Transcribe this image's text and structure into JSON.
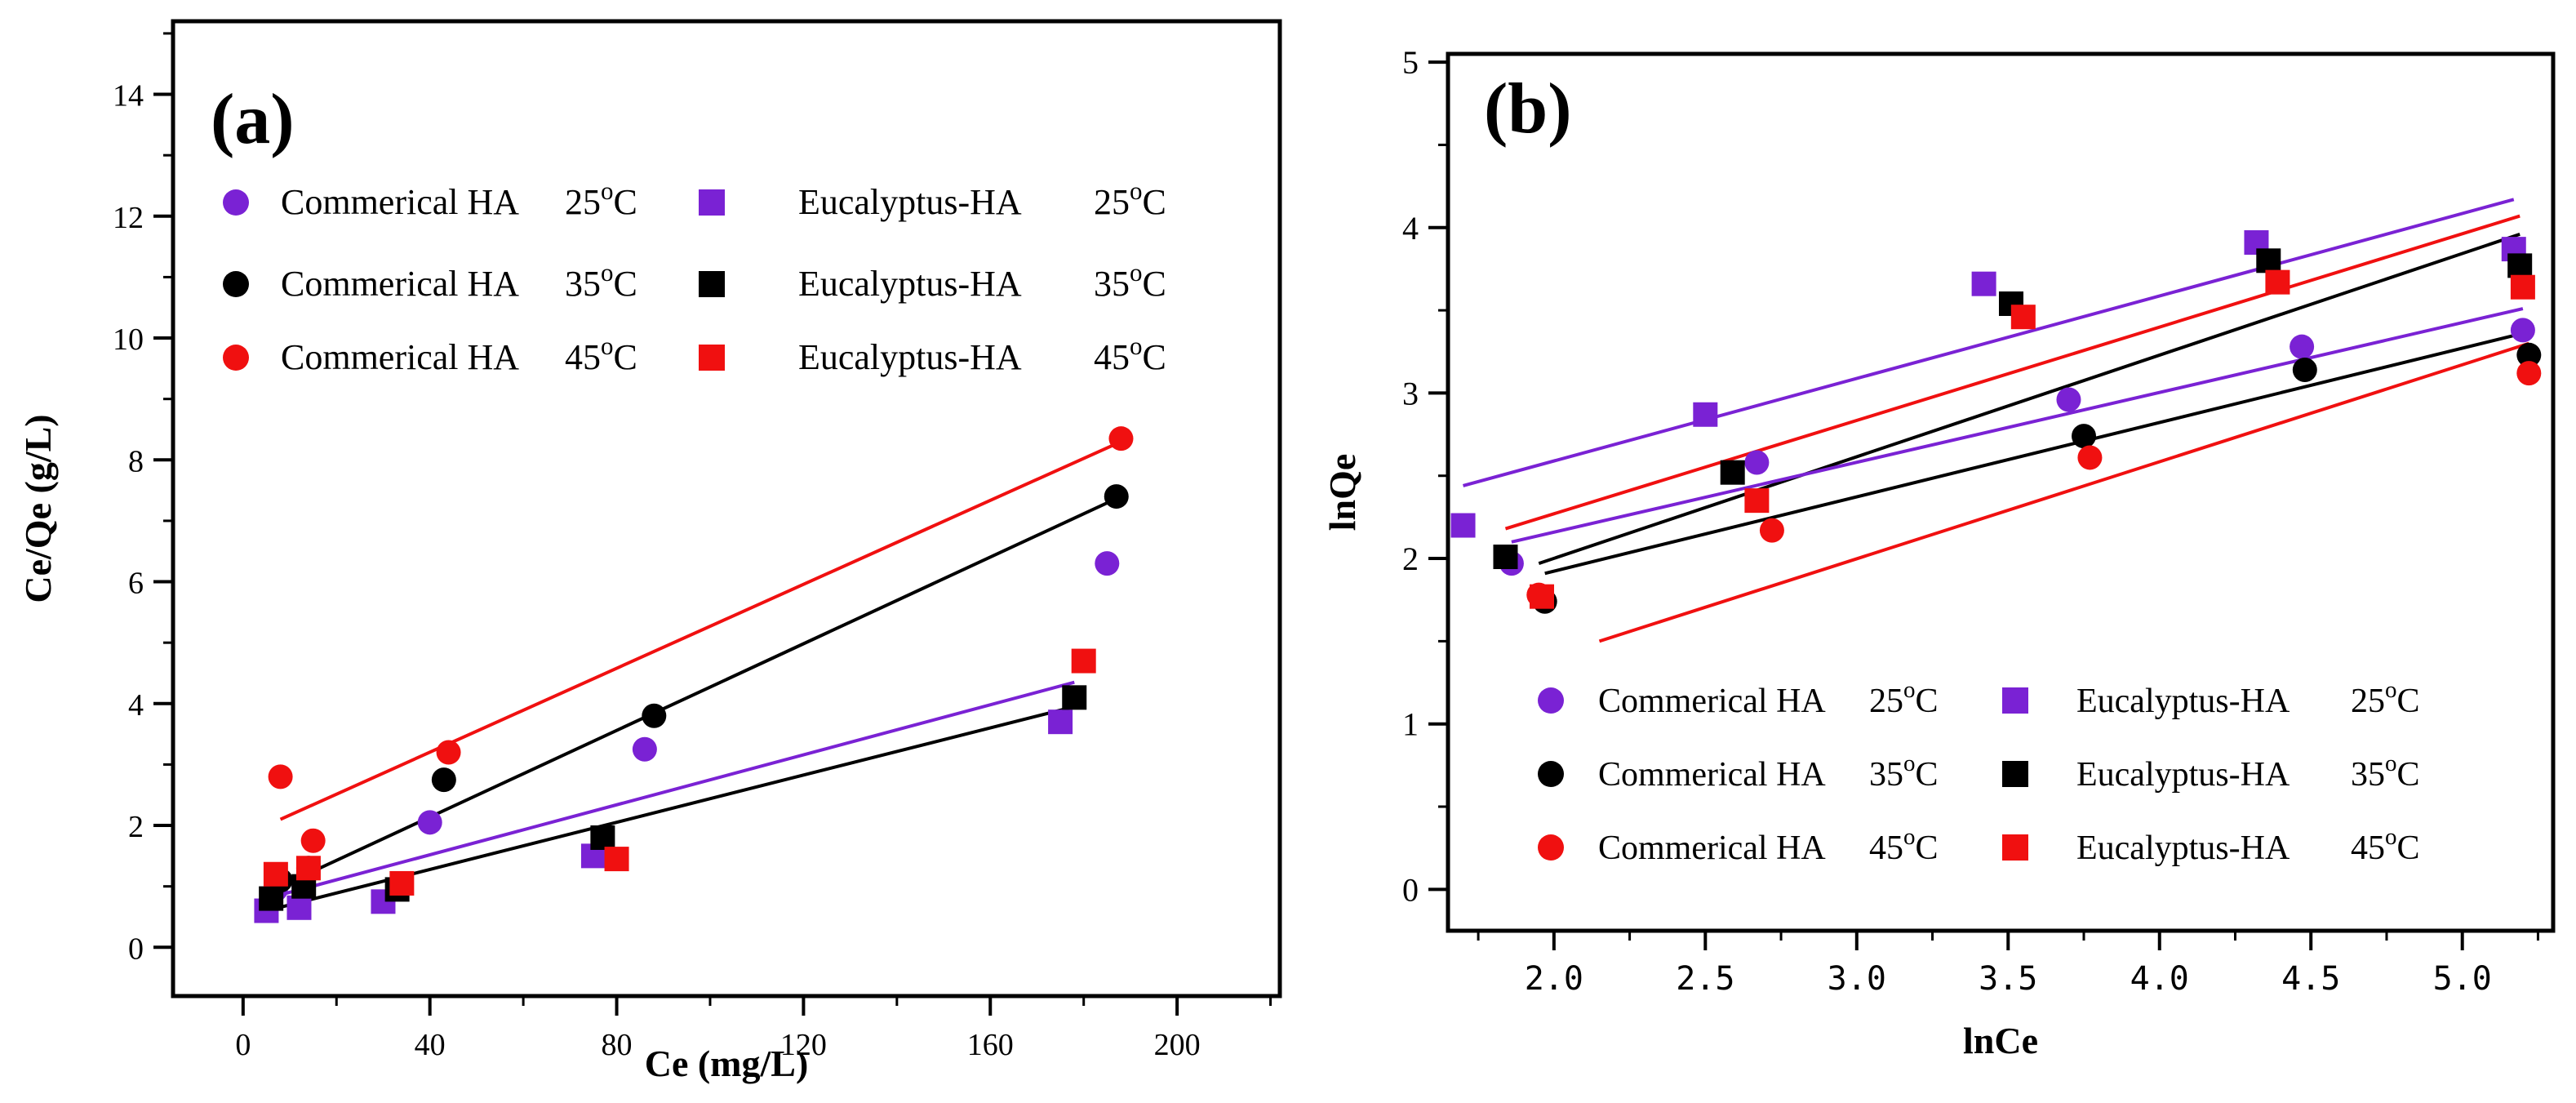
{
  "chart_data": [
    {
      "type": "scatter",
      "panel_label": "(a)",
      "title": "",
      "xlabel": "Ce (mg/L)",
      "ylabel": "Ce/Qe (g/L)",
      "xlim": [
        -15,
        222
      ],
      "ylim": [
        -0.8,
        15.2
      ],
      "xticks": [
        "0",
        "40",
        "80",
        "120",
        "160",
        "200"
      ],
      "yticks": [
        "0",
        "2",
        "4",
        "6",
        "8",
        "10",
        "12",
        "14"
      ],
      "legend_position": "top",
      "series": [
        {
          "name": "Commerical HA",
          "temp": "25",
          "color": "#7a22d4",
          "marker": "circle",
          "x": [
            7,
            13,
            40,
            86,
            185
          ],
          "y": [
            0.95,
            1.0,
            2.05,
            3.25,
            6.3
          ]
        },
        {
          "name": "Commerical HA",
          "temp": "35",
          "color": "#000000",
          "marker": "circle",
          "x": [
            8,
            14,
            43,
            88,
            187
          ],
          "y": [
            1.1,
            1.3,
            2.75,
            3.8,
            7.4
          ]
        },
        {
          "name": "Commerical HA",
          "temp": "45",
          "color": "#f01010",
          "marker": "circle",
          "x": [
            8,
            15,
            44,
            188
          ],
          "y": [
            2.8,
            1.75,
            3.2,
            8.35
          ]
        },
        {
          "name": "Eucalyptus-HA",
          "temp": "25",
          "color": "#7a22d4",
          "marker": "square",
          "x": [
            5,
            12,
            30,
            75,
            175
          ],
          "y": [
            0.6,
            0.65,
            0.75,
            1.5,
            3.7
          ]
        },
        {
          "name": "Eucalyptus-HA",
          "temp": "35",
          "color": "#000000",
          "marker": "square",
          "x": [
            6,
            13,
            33,
            77,
            178
          ],
          "y": [
            0.8,
            1.0,
            0.95,
            1.8,
            4.1
          ]
        },
        {
          "name": "Eucalyptus-HA",
          "temp": "45",
          "color": "#f01010",
          "marker": "square",
          "x": [
            7,
            14,
            34,
            80,
            180
          ],
          "y": [
            1.2,
            1.3,
            1.05,
            1.45,
            4.7
          ]
        }
      ],
      "fits": [
        {
          "color": "#f01010",
          "x": [
            8,
            188
          ],
          "y": [
            2.1,
            8.3
          ]
        },
        {
          "color": "#000000",
          "x": [
            8,
            188
          ],
          "y": [
            1.0,
            7.4
          ]
        },
        {
          "color": "#7a22d4",
          "x": [
            5,
            178
          ],
          "y": [
            0.8,
            4.35
          ]
        },
        {
          "color": "#000000",
          "x": [
            5,
            178
          ],
          "y": [
            0.6,
            3.95
          ]
        }
      ]
    },
    {
      "type": "scatter",
      "panel_label": "(b)",
      "title": "",
      "xlabel": "lnCe",
      "ylabel": "lnQe",
      "xlim": [
        1.65,
        5.3
      ],
      "ylim": [
        -0.25,
        5.05
      ],
      "xticks": [
        "2.0",
        "2.5",
        "3.0",
        "3.5",
        "4.0",
        "4.5",
        "5.0"
      ],
      "yticks": [
        "0",
        "1",
        "2",
        "3",
        "4",
        "5"
      ],
      "legend_position": "bottom",
      "series": [
        {
          "name": "Commerical HA",
          "temp": "25",
          "color": "#7a22d4",
          "marker": "circle",
          "x": [
            1.86,
            2.67,
            3.7,
            4.47,
            5.2
          ],
          "y": [
            1.97,
            2.58,
            2.96,
            3.28,
            3.38
          ]
        },
        {
          "name": "Commerical HA",
          "temp": "35",
          "color": "#000000",
          "marker": "circle",
          "x": [
            1.97,
            3.75,
            4.48,
            5.22
          ],
          "y": [
            1.74,
            2.74,
            3.14,
            3.23
          ]
        },
        {
          "name": "Commerical HA",
          "temp": "45",
          "color": "#f01010",
          "marker": "circle",
          "x": [
            1.95,
            2.72,
            3.77,
            5.22
          ],
          "y": [
            1.78,
            2.17,
            2.61,
            3.12
          ]
        },
        {
          "name": "Eucalyptus-HA",
          "temp": "25",
          "color": "#7a22d4",
          "marker": "square",
          "x": [
            1.7,
            2.5,
            3.42,
            4.32,
            5.17
          ],
          "y": [
            2.2,
            2.87,
            3.66,
            3.91,
            3.87
          ]
        },
        {
          "name": "Eucalyptus-HA",
          "temp": "35",
          "color": "#000000",
          "marker": "square",
          "x": [
            1.84,
            2.59,
            3.51,
            4.36,
            5.19
          ],
          "y": [
            2.01,
            2.52,
            3.54,
            3.8,
            3.77
          ]
        },
        {
          "name": "Eucalyptus-HA",
          "temp": "45",
          "color": "#f01010",
          "marker": "square",
          "x": [
            1.96,
            2.67,
            3.55,
            4.39,
            5.2
          ],
          "y": [
            1.77,
            2.35,
            3.46,
            3.67,
            3.64
          ]
        }
      ],
      "fits": [
        {
          "color": "#7a22d4",
          "x": [
            1.7,
            5.17
          ],
          "y": [
            2.44,
            4.17
          ]
        },
        {
          "color": "#f01010",
          "x": [
            1.84,
            5.19
          ],
          "y": [
            2.18,
            4.07
          ]
        },
        {
          "color": "#000000",
          "x": [
            1.95,
            5.19
          ],
          "y": [
            1.97,
            3.96
          ]
        },
        {
          "color": "#7a22d4",
          "x": [
            1.86,
            5.2
          ],
          "y": [
            2.1,
            3.51
          ]
        },
        {
          "color": "#000000",
          "x": [
            1.97,
            5.22
          ],
          "y": [
            1.91,
            3.37
          ]
        },
        {
          "color": "#f01010",
          "x": [
            2.15,
            5.22
          ],
          "y": [
            1.5,
            3.3
          ]
        }
      ]
    }
  ]
}
